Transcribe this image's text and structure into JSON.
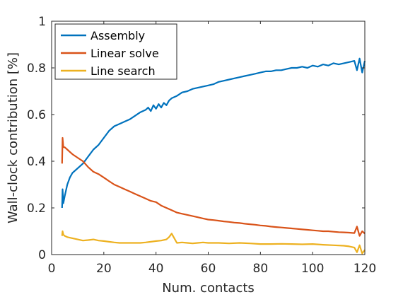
{
  "chart_data": {
    "type": "line",
    "xlabel": "Num. contacts",
    "ylabel": "Wall-clock contribution [%]",
    "xlim": [
      0,
      120
    ],
    "ylim": [
      0,
      1
    ],
    "xticks": [
      0,
      20,
      40,
      60,
      80,
      100,
      120
    ],
    "yticks": [
      0,
      0.2,
      0.4,
      0.6,
      0.8,
      1
    ],
    "ytick_labels": [
      "0",
      "0.2",
      "0.4",
      "0.6",
      "0.8",
      "1"
    ],
    "grid": false,
    "legend_position": "top-left",
    "series": [
      {
        "name": "Assembly",
        "color": "#0072BD",
        "x": [
          4,
          4.2,
          4.5,
          5,
          6,
          7,
          8,
          10,
          12,
          14,
          16,
          18,
          20,
          22,
          24,
          26,
          28,
          30,
          32,
          34,
          36,
          37,
          38,
          39,
          40,
          41,
          42,
          43,
          44,
          45,
          46,
          48,
          50,
          52,
          54,
          56,
          58,
          60,
          62,
          64,
          66,
          68,
          70,
          72,
          74,
          76,
          78,
          80,
          82,
          84,
          86,
          88,
          90,
          92,
          94,
          96,
          98,
          100,
          102,
          104,
          106,
          108,
          110,
          112,
          114,
          116,
          117,
          118,
          119,
          120
        ],
        "y": [
          0.2,
          0.28,
          0.22,
          0.25,
          0.3,
          0.33,
          0.35,
          0.37,
          0.39,
          0.42,
          0.45,
          0.47,
          0.5,
          0.53,
          0.55,
          0.56,
          0.57,
          0.58,
          0.595,
          0.61,
          0.62,
          0.63,
          0.615,
          0.64,
          0.625,
          0.645,
          0.63,
          0.65,
          0.64,
          0.66,
          0.67,
          0.68,
          0.695,
          0.7,
          0.71,
          0.715,
          0.72,
          0.725,
          0.73,
          0.74,
          0.745,
          0.75,
          0.755,
          0.76,
          0.765,
          0.77,
          0.775,
          0.78,
          0.785,
          0.785,
          0.79,
          0.79,
          0.795,
          0.8,
          0.8,
          0.805,
          0.8,
          0.81,
          0.805,
          0.815,
          0.81,
          0.82,
          0.815,
          0.82,
          0.825,
          0.83,
          0.79,
          0.84,
          0.78,
          0.83
        ]
      },
      {
        "name": "Linear solve",
        "color": "#D95319",
        "x": [
          4,
          4.2,
          4.5,
          5,
          6,
          7,
          8,
          10,
          12,
          14,
          16,
          18,
          20,
          22,
          24,
          26,
          28,
          30,
          32,
          34,
          36,
          38,
          40,
          42,
          44,
          46,
          48,
          50,
          52,
          54,
          56,
          58,
          60,
          62,
          64,
          66,
          68,
          70,
          72,
          74,
          76,
          78,
          80,
          82,
          84,
          86,
          88,
          90,
          92,
          94,
          96,
          98,
          100,
          102,
          104,
          106,
          108,
          110,
          112,
          114,
          116,
          117,
          118,
          119,
          120
        ],
        "y": [
          0.39,
          0.5,
          0.46,
          0.46,
          0.45,
          0.44,
          0.43,
          0.415,
          0.4,
          0.375,
          0.355,
          0.345,
          0.33,
          0.315,
          0.3,
          0.29,
          0.28,
          0.27,
          0.26,
          0.25,
          0.24,
          0.23,
          0.225,
          0.21,
          0.2,
          0.19,
          0.18,
          0.175,
          0.17,
          0.165,
          0.16,
          0.155,
          0.15,
          0.148,
          0.145,
          0.142,
          0.14,
          0.137,
          0.135,
          0.132,
          0.13,
          0.128,
          0.125,
          0.123,
          0.12,
          0.118,
          0.116,
          0.114,
          0.112,
          0.11,
          0.108,
          0.106,
          0.104,
          0.102,
          0.1,
          0.1,
          0.098,
          0.096,
          0.095,
          0.094,
          0.092,
          0.12,
          0.08,
          0.1,
          0.09
        ]
      },
      {
        "name": "Line search",
        "color": "#EDB120",
        "x": [
          4,
          4.2,
          4.5,
          5,
          6,
          8,
          10,
          12,
          14,
          16,
          18,
          20,
          22,
          24,
          26,
          28,
          30,
          32,
          34,
          36,
          38,
          40,
          42,
          44,
          45,
          46,
          48,
          50,
          52,
          54,
          56,
          58,
          60,
          64,
          68,
          72,
          76,
          80,
          84,
          88,
          92,
          96,
          100,
          104,
          108,
          112,
          114,
          116,
          117,
          118,
          119,
          120
        ],
        "y": [
          0.08,
          0.1,
          0.085,
          0.08,
          0.075,
          0.07,
          0.065,
          0.06,
          0.062,
          0.065,
          0.06,
          0.058,
          0.055,
          0.052,
          0.05,
          0.05,
          0.05,
          0.05,
          0.05,
          0.052,
          0.055,
          0.058,
          0.06,
          0.065,
          0.075,
          0.09,
          0.05,
          0.052,
          0.05,
          0.048,
          0.05,
          0.052,
          0.05,
          0.05,
          0.048,
          0.05,
          0.048,
          0.045,
          0.045,
          0.046,
          0.045,
          0.044,
          0.045,
          0.042,
          0.04,
          0.038,
          0.035,
          0.03,
          0.01,
          0.04,
          0.005,
          0.02
        ]
      }
    ]
  }
}
